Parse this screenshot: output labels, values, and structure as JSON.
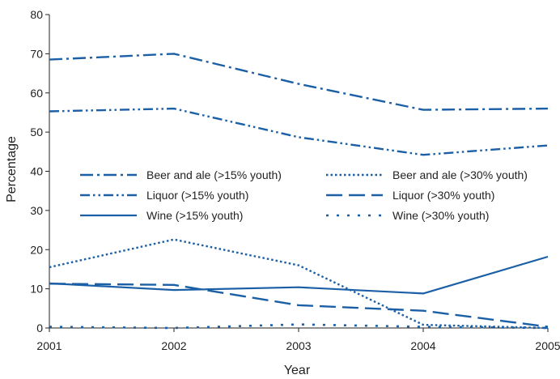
{
  "chart_data": {
    "type": "line",
    "title": "",
    "xlabel": "Year",
    "ylabel": "Percentage",
    "x": [
      "2001",
      "2002",
      "2003",
      "2004",
      "2005"
    ],
    "xlim": [
      2001,
      2005
    ],
    "ylim": [
      0,
      80
    ],
    "yticks": [
      "0",
      "10",
      "20",
      "30",
      "40",
      "50",
      "60",
      "70",
      "80"
    ],
    "grid": false,
    "legend_position": "center-left",
    "series": [
      {
        "name": "Beer and ale (>15% youth)",
        "dash": "dash-dot",
        "values": [
          68.5,
          70,
          62.3,
          55.7,
          56
        ]
      },
      {
        "name": "Beer and ale (>30% youth)",
        "dash": "dotted",
        "values": [
          15.5,
          22.6,
          16,
          0.8,
          0
        ]
      },
      {
        "name": "Liquor (>15% youth)",
        "dash": "dash-dot-dot",
        "values": [
          55.3,
          56,
          48.7,
          44.2,
          46.6
        ]
      },
      {
        "name": "Liquor (>30% youth)",
        "dash": "long-dash",
        "values": [
          11.3,
          11,
          5.8,
          4.4,
          0.3
        ]
      },
      {
        "name": "Wine (>15% youth)",
        "dash": "solid",
        "values": [
          11.4,
          9.7,
          10.4,
          8.8,
          18.2
        ]
      },
      {
        "name": "Wine (>30% youth)",
        "dash": "sparse-dot",
        "values": [
          0.3,
          0,
          0.9,
          0.3,
          0
        ]
      }
    ],
    "line_color": "#1b5fa6",
    "axis_color": "#222222"
  }
}
